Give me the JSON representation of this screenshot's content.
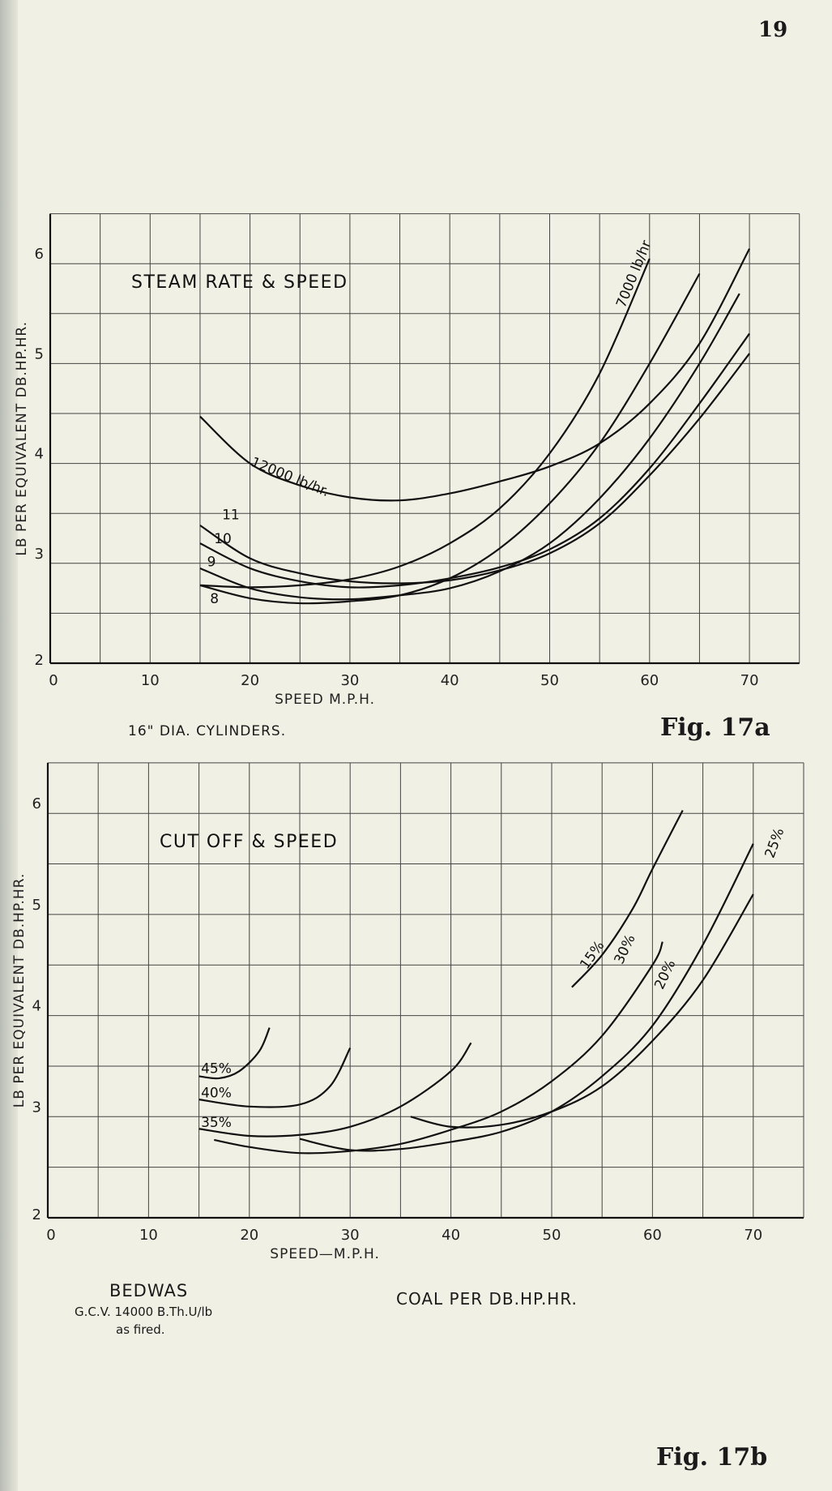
{
  "page_number": "19",
  "chart_data": [
    {
      "type": "line",
      "title": "STEAM RATE & SPEED",
      "xlabel": "SPEED  M.P.H.",
      "ylabel": "LB PER EQUIVALENT DB.HP.HR.",
      "xlim": [
        0,
        75
      ],
      "ylim": [
        2,
        6.5
      ],
      "xticks": [
        "0",
        "10",
        "20",
        "30",
        "40",
        "50",
        "60",
        "70"
      ],
      "yticks": [
        "2",
        "3",
        "4",
        "5",
        "6"
      ],
      "grid": true,
      "caption": "16\" DIA. CYLINDERS.",
      "figure_label": "Fig.  17a",
      "series": [
        {
          "name": "12000 lb/hr.",
          "x": [
            15,
            20,
            25,
            30,
            35,
            40,
            45,
            50,
            55,
            60,
            65,
            70
          ],
          "y": [
            4.47,
            4.0,
            3.78,
            3.66,
            3.63,
            3.7,
            3.82,
            3.97,
            4.2,
            4.6,
            5.2,
            6.15
          ]
        },
        {
          "name": "7000 lb/hr",
          "x": [
            15,
            20,
            25,
            30,
            35,
            40,
            45,
            50,
            55,
            60
          ],
          "y": [
            2.78,
            2.76,
            2.78,
            2.84,
            2.97,
            3.2,
            3.55,
            4.1,
            4.9,
            6.05
          ]
        },
        {
          "name": "8",
          "x": [
            15,
            20,
            25,
            30,
            35,
            40,
            45,
            50,
            55,
            60,
            65
          ],
          "y": [
            2.78,
            2.65,
            2.6,
            2.62,
            2.68,
            2.85,
            3.15,
            3.6,
            4.2,
            5.0,
            5.9
          ]
        },
        {
          "name": "9",
          "x": [
            15,
            20,
            25,
            30,
            35,
            40,
            45,
            50,
            55,
            60,
            65,
            69
          ],
          "y": [
            2.95,
            2.75,
            2.66,
            2.64,
            2.68,
            2.75,
            2.92,
            3.2,
            3.65,
            4.25,
            5.0,
            5.7
          ]
        },
        {
          "name": "10",
          "x": [
            15,
            20,
            25,
            30,
            35,
            40,
            45,
            50,
            55,
            60,
            65,
            70
          ],
          "y": [
            3.2,
            2.95,
            2.82,
            2.76,
            2.78,
            2.85,
            2.96,
            3.14,
            3.45,
            3.95,
            4.6,
            5.3
          ]
        },
        {
          "name": "11",
          "x": [
            15,
            20,
            25,
            30,
            35,
            40,
            45,
            50,
            55,
            60,
            65,
            70
          ],
          "y": [
            3.38,
            3.05,
            2.9,
            2.82,
            2.8,
            2.83,
            2.93,
            3.1,
            3.4,
            3.88,
            4.45,
            5.1
          ]
        }
      ]
    },
    {
      "type": "line",
      "title": "CUT OFF & SPEED",
      "xlabel": "SPEED—M.P.H.",
      "ylabel": "LB PER EQUIVALENT DB.HP.HR.",
      "xlim": [
        0,
        75
      ],
      "ylim": [
        2,
        6.5
      ],
      "xticks": [
        "0",
        "10",
        "20",
        "30",
        "40",
        "50",
        "60",
        "70"
      ],
      "yticks": [
        "2",
        "3",
        "4",
        "5",
        "6"
      ],
      "grid": true,
      "figure_label": "Fig.  17b",
      "series": [
        {
          "name": "45%",
          "x": [
            15,
            17,
            19,
            21,
            22
          ],
          "y": [
            3.4,
            3.38,
            3.45,
            3.65,
            3.88
          ]
        },
        {
          "name": "40%",
          "x": [
            15,
            20,
            25,
            28,
            30
          ],
          "y": [
            3.17,
            3.1,
            3.12,
            3.3,
            3.68
          ]
        },
        {
          "name": "35%",
          "x": [
            15,
            20,
            25,
            30,
            35,
            40,
            42
          ],
          "y": [
            2.88,
            2.81,
            2.82,
            2.9,
            3.1,
            3.45,
            3.73
          ]
        },
        {
          "name": "30%",
          "x": [
            16.5,
            20,
            25,
            30,
            35,
            40,
            45,
            50,
            55,
            60,
            61
          ],
          "y": [
            2.77,
            2.7,
            2.64,
            2.66,
            2.73,
            2.87,
            3.05,
            3.35,
            3.8,
            4.5,
            4.73
          ]
        },
        {
          "name": "20%",
          "x": [
            25,
            30,
            35,
            40,
            45,
            50,
            55,
            60,
            65,
            70
          ],
          "y": [
            2.78,
            2.67,
            2.68,
            2.75,
            2.85,
            3.05,
            3.4,
            3.9,
            4.7,
            5.7
          ]
        },
        {
          "name": "25%",
          "x": [
            36,
            40,
            45,
            50,
            55,
            60,
            65,
            70
          ],
          "y": [
            3.0,
            2.9,
            2.92,
            3.05,
            3.3,
            3.75,
            4.35,
            5.2
          ]
        },
        {
          "name": "15%",
          "x": [
            52,
            55,
            58,
            60,
            63
          ],
          "y": [
            4.28,
            4.6,
            5.05,
            5.45,
            6.03
          ]
        }
      ]
    }
  ],
  "footer": {
    "fuel_name": "BEDWAS",
    "fuel_gcv": "G.C.V. 14000 B.Th.U/lb",
    "fuel_state": "as fired.",
    "coal_caption": "COAL PER DB.HP.HR."
  }
}
